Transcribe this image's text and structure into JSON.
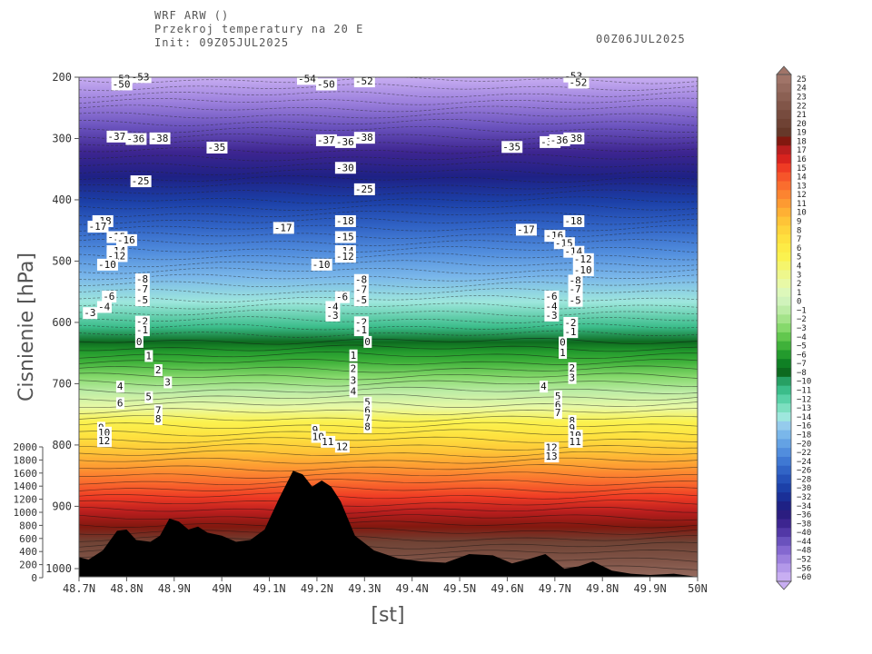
{
  "header": {
    "line1": "WRF ARW ()",
    "line2": "Przekroj temperatury na 20 E",
    "line3": "Init: 09Z05JUL2025",
    "valid_time": "00Z06JUL2025"
  },
  "chart_data": {
    "type": "heatmap",
    "title": "Przekroj temperatury na 20 E",
    "xlabel": "[st]",
    "ylabel": "Cisnienie [hPa]",
    "x_ticks": [
      "48.7N",
      "48.8N",
      "48.9N",
      "49N",
      "49.1N",
      "49.2N",
      "49.3N",
      "49.4N",
      "49.5N",
      "49.6N",
      "49.7N",
      "49.8N",
      "49.9N",
      "50N"
    ],
    "x_range": [
      48.7,
      50.0
    ],
    "y_ticks": [
      200,
      300,
      400,
      500,
      600,
      700,
      800,
      900,
      1000
    ],
    "y_range": [
      200,
      1015
    ],
    "y_reversed": true,
    "height_ticks": [
      2000,
      1800,
      1600,
      1400,
      1200,
      1000,
      800,
      600,
      400,
      200,
      0
    ],
    "colorbar_levels": [
      25,
      24,
      23,
      22,
      21,
      20,
      19,
      18,
      17,
      16,
      15,
      14,
      13,
      12,
      11,
      10,
      9,
      8,
      7,
      6,
      5,
      4,
      3,
      2,
      1,
      0,
      -1,
      -2,
      -3,
      -4,
      -5,
      -6,
      -7,
      -8,
      -10,
      -11,
      -12,
      -13,
      -14,
      -16,
      -18,
      -20,
      -22,
      -24,
      -26,
      -28,
      -30,
      -32,
      -34,
      -36,
      -38,
      -40,
      -44,
      -48,
      -52,
      -56,
      -60
    ],
    "colorbar_colors": [
      "#a07468",
      "#956a5e",
      "#8b6053",
      "#815548",
      "#774b3e",
      "#6f4234",
      "#663829",
      "#82180f",
      "#b91e1e",
      "#d8231e",
      "#ef3b24",
      "#f6552a",
      "#fa6d2e",
      "#fc8430",
      "#fd9a32",
      "#feb034",
      "#fec437",
      "#fed43b",
      "#fee13f",
      "#fdeb46",
      "#fbf24f",
      "#f5f56c",
      "#eef78c",
      "#e8f9a6",
      "#ddf8ba",
      "#d0f3bb",
      "#bdeca6",
      "#a4e38a",
      "#86d96c",
      "#62c74e",
      "#3fb13a",
      "#239b2d",
      "#0f8024",
      "#0d6a1f",
      "#27a064",
      "#3bbd8a",
      "#59d1a7",
      "#7ddfc0",
      "#9ee7dd",
      "#95cbec",
      "#7ab7ea",
      "#64a2e4",
      "#518ddd",
      "#3f78d3",
      "#3164c6",
      "#2551b8",
      "#1c40a8",
      "#1a2f97",
      "#1e2185",
      "#2b1d80",
      "#3d2590",
      "#5238a6",
      "#6a52bd",
      "#8468d0",
      "#9c80dd",
      "#b398e9",
      "#c8aef2"
    ],
    "contour_labels": [
      {
        "x": 48.77,
        "p": 208,
        "v": "-52"
      },
      {
        "x": 48.77,
        "p": 217,
        "v": "-50"
      },
      {
        "x": 48.81,
        "p": 205,
        "v": "-53"
      },
      {
        "x": 48.85,
        "p": 305,
        "v": "-38"
      },
      {
        "x": 48.76,
        "p": 302,
        "v": "-37"
      },
      {
        "x": 48.8,
        "p": 306,
        "v": "-36"
      },
      {
        "x": 48.97,
        "p": 320,
        "v": "-35"
      },
      {
        "x": 48.81,
        "p": 375,
        "v": "-25"
      },
      {
        "x": 48.73,
        "p": 440,
        "v": "-18"
      },
      {
        "x": 48.72,
        "p": 449,
        "v": "-17"
      },
      {
        "x": 48.76,
        "p": 466,
        "v": "-15"
      },
      {
        "x": 48.78,
        "p": 471,
        "v": "-16"
      },
      {
        "x": 48.76,
        "p": 489,
        "v": "-14"
      },
      {
        "x": 48.76,
        "p": 497,
        "v": "-12"
      },
      {
        "x": 48.74,
        "p": 511,
        "v": "-10"
      },
      {
        "x": 48.82,
        "p": 535,
        "v": "-8"
      },
      {
        "x": 48.82,
        "p": 551,
        "v": "-7"
      },
      {
        "x": 48.82,
        "p": 569,
        "v": "-5"
      },
      {
        "x": 48.75,
        "p": 563,
        "v": "-6"
      },
      {
        "x": 48.74,
        "p": 580,
        "v": "-4"
      },
      {
        "x": 48.71,
        "p": 590,
        "v": "-3"
      },
      {
        "x": 48.82,
        "p": 604,
        "v": "-2"
      },
      {
        "x": 48.82,
        "p": 618,
        "v": "-1"
      },
      {
        "x": 48.82,
        "p": 637,
        "v": "0"
      },
      {
        "x": 48.84,
        "p": 660,
        "v": "1"
      },
      {
        "x": 48.86,
        "p": 683,
        "v": "2"
      },
      {
        "x": 48.88,
        "p": 703,
        "v": "3"
      },
      {
        "x": 48.78,
        "p": 710,
        "v": "4"
      },
      {
        "x": 48.84,
        "p": 727,
        "v": "5"
      },
      {
        "x": 48.78,
        "p": 737,
        "v": "6"
      },
      {
        "x": 48.86,
        "p": 749,
        "v": "7"
      },
      {
        "x": 48.86,
        "p": 763,
        "v": "8"
      },
      {
        "x": 48.74,
        "p": 777,
        "v": "9"
      },
      {
        "x": 48.74,
        "p": 785,
        "v": "10"
      },
      {
        "x": 48.74,
        "p": 799,
        "v": "12"
      },
      {
        "x": 49.16,
        "p": 208,
        "v": "-54"
      },
      {
        "x": 49.2,
        "p": 217,
        "v": "-50"
      },
      {
        "x": 49.28,
        "p": 212,
        "v": "-52"
      },
      {
        "x": 49.28,
        "p": 304,
        "v": "-38"
      },
      {
        "x": 49.2,
        "p": 308,
        "v": "-37"
      },
      {
        "x": 49.24,
        "p": 311,
        "v": "-36"
      },
      {
        "x": 49.24,
        "p": 353,
        "v": "-30"
      },
      {
        "x": 49.28,
        "p": 388,
        "v": "-25"
      },
      {
        "x": 49.11,
        "p": 451,
        "v": "-17"
      },
      {
        "x": 49.24,
        "p": 440,
        "v": "-18"
      },
      {
        "x": 49.24,
        "p": 466,
        "v": "-15"
      },
      {
        "x": 49.24,
        "p": 489,
        "v": "-14"
      },
      {
        "x": 49.24,
        "p": 498,
        "v": "-12"
      },
      {
        "x": 49.19,
        "p": 511,
        "v": "-10"
      },
      {
        "x": 49.28,
        "p": 536,
        "v": "-8"
      },
      {
        "x": 49.28,
        "p": 552,
        "v": "-7"
      },
      {
        "x": 49.24,
        "p": 564,
        "v": "-6"
      },
      {
        "x": 49.28,
        "p": 569,
        "v": "-5"
      },
      {
        "x": 49.22,
        "p": 580,
        "v": "-4"
      },
      {
        "x": 49.22,
        "p": 594,
        "v": "-3"
      },
      {
        "x": 49.28,
        "p": 605,
        "v": "-2"
      },
      {
        "x": 49.28,
        "p": 618,
        "v": "-1"
      },
      {
        "x": 49.3,
        "p": 637,
        "v": "0"
      },
      {
        "x": 49.27,
        "p": 659,
        "v": "1"
      },
      {
        "x": 49.27,
        "p": 681,
        "v": "2"
      },
      {
        "x": 49.27,
        "p": 700,
        "v": "3"
      },
      {
        "x": 49.27,
        "p": 718,
        "v": "4"
      },
      {
        "x": 49.3,
        "p": 736,
        "v": "5"
      },
      {
        "x": 49.3,
        "p": 749,
        "v": "6"
      },
      {
        "x": 49.3,
        "p": 762,
        "v": "7"
      },
      {
        "x": 49.3,
        "p": 776,
        "v": "8"
      },
      {
        "x": 49.19,
        "p": 781,
        "v": "9"
      },
      {
        "x": 49.19,
        "p": 792,
        "v": "10"
      },
      {
        "x": 49.21,
        "p": 800,
        "v": "11"
      },
      {
        "x": 49.24,
        "p": 808,
        "v": "12"
      },
      {
        "x": 49.72,
        "p": 204,
        "v": "-53"
      },
      {
        "x": 49.73,
        "p": 214,
        "v": "-52"
      },
      {
        "x": 49.72,
        "p": 305,
        "v": "-38"
      },
      {
        "x": 49.67,
        "p": 311,
        "v": "-37"
      },
      {
        "x": 49.69,
        "p": 308,
        "v": "-36"
      },
      {
        "x": 49.59,
        "p": 319,
        "v": "-35"
      },
      {
        "x": 49.72,
        "p": 440,
        "v": "-18"
      },
      {
        "x": 49.62,
        "p": 454,
        "v": "-17"
      },
      {
        "x": 49.68,
        "p": 464,
        "v": "-16"
      },
      {
        "x": 49.7,
        "p": 476,
        "v": "-15"
      },
      {
        "x": 49.72,
        "p": 490,
        "v": "-14"
      },
      {
        "x": 49.74,
        "p": 502,
        "v": "-12"
      },
      {
        "x": 49.74,
        "p": 520,
        "v": "-10"
      },
      {
        "x": 49.73,
        "p": 537,
        "v": "-8"
      },
      {
        "x": 49.73,
        "p": 551,
        "v": "-7"
      },
      {
        "x": 49.68,
        "p": 563,
        "v": "-6"
      },
      {
        "x": 49.73,
        "p": 570,
        "v": "-5"
      },
      {
        "x": 49.68,
        "p": 579,
        "v": "-4"
      },
      {
        "x": 49.68,
        "p": 594,
        "v": "-3"
      },
      {
        "x": 49.72,
        "p": 606,
        "v": "-2"
      },
      {
        "x": 49.72,
        "p": 621,
        "v": "-1"
      },
      {
        "x": 49.71,
        "p": 638,
        "v": "0"
      },
      {
        "x": 49.71,
        "p": 655,
        "v": "1"
      },
      {
        "x": 49.73,
        "p": 680,
        "v": "2"
      },
      {
        "x": 49.73,
        "p": 696,
        "v": "3"
      },
      {
        "x": 49.67,
        "p": 710,
        "v": "4"
      },
      {
        "x": 49.7,
        "p": 726,
        "v": "5"
      },
      {
        "x": 49.7,
        "p": 740,
        "v": "6"
      },
      {
        "x": 49.7,
        "p": 753,
        "v": "7"
      },
      {
        "x": 49.73,
        "p": 766,
        "v": "8"
      },
      {
        "x": 49.73,
        "p": 778,
        "v": "9"
      },
      {
        "x": 49.73,
        "p": 790,
        "v": "10"
      },
      {
        "x": 49.73,
        "p": 800,
        "v": "11"
      },
      {
        "x": 49.68,
        "p": 810,
        "v": "12"
      },
      {
        "x": 49.68,
        "p": 824,
        "v": "13"
      }
    ],
    "terrain_profile": [
      {
        "x": 48.7,
        "p": 983
      },
      {
        "x": 48.72,
        "p": 987
      },
      {
        "x": 48.75,
        "p": 972
      },
      {
        "x": 48.78,
        "p": 940
      },
      {
        "x": 48.8,
        "p": 938
      },
      {
        "x": 48.82,
        "p": 955
      },
      {
        "x": 48.85,
        "p": 958
      },
      {
        "x": 48.87,
        "p": 948
      },
      {
        "x": 48.89,
        "p": 920
      },
      {
        "x": 48.91,
        "p": 925
      },
      {
        "x": 48.93,
        "p": 938
      },
      {
        "x": 48.95,
        "p": 933
      },
      {
        "x": 48.97,
        "p": 943
      },
      {
        "x": 49.0,
        "p": 948
      },
      {
        "x": 49.03,
        "p": 958
      },
      {
        "x": 49.06,
        "p": 955
      },
      {
        "x": 49.09,
        "p": 938
      },
      {
        "x": 49.12,
        "p": 888
      },
      {
        "x": 49.15,
        "p": 842
      },
      {
        "x": 49.17,
        "p": 848
      },
      {
        "x": 49.19,
        "p": 868
      },
      {
        "x": 49.21,
        "p": 858
      },
      {
        "x": 49.23,
        "p": 868
      },
      {
        "x": 49.25,
        "p": 892
      },
      {
        "x": 49.28,
        "p": 948
      },
      {
        "x": 49.32,
        "p": 972
      },
      {
        "x": 49.37,
        "p": 985
      },
      {
        "x": 49.42,
        "p": 990
      },
      {
        "x": 49.47,
        "p": 992
      },
      {
        "x": 49.52,
        "p": 978
      },
      {
        "x": 49.57,
        "p": 980
      },
      {
        "x": 49.61,
        "p": 993
      },
      {
        "x": 49.65,
        "p": 985
      },
      {
        "x": 49.68,
        "p": 978
      },
      {
        "x": 49.72,
        "p": 1002
      },
      {
        "x": 49.75,
        "p": 998
      },
      {
        "x": 49.78,
        "p": 990
      },
      {
        "x": 49.82,
        "p": 1005
      },
      {
        "x": 49.86,
        "p": 1010
      },
      {
        "x": 49.9,
        "p": 1012
      },
      {
        "x": 49.95,
        "p": 1010
      },
      {
        "x": 50.0,
        "p": 1015
      }
    ]
  }
}
